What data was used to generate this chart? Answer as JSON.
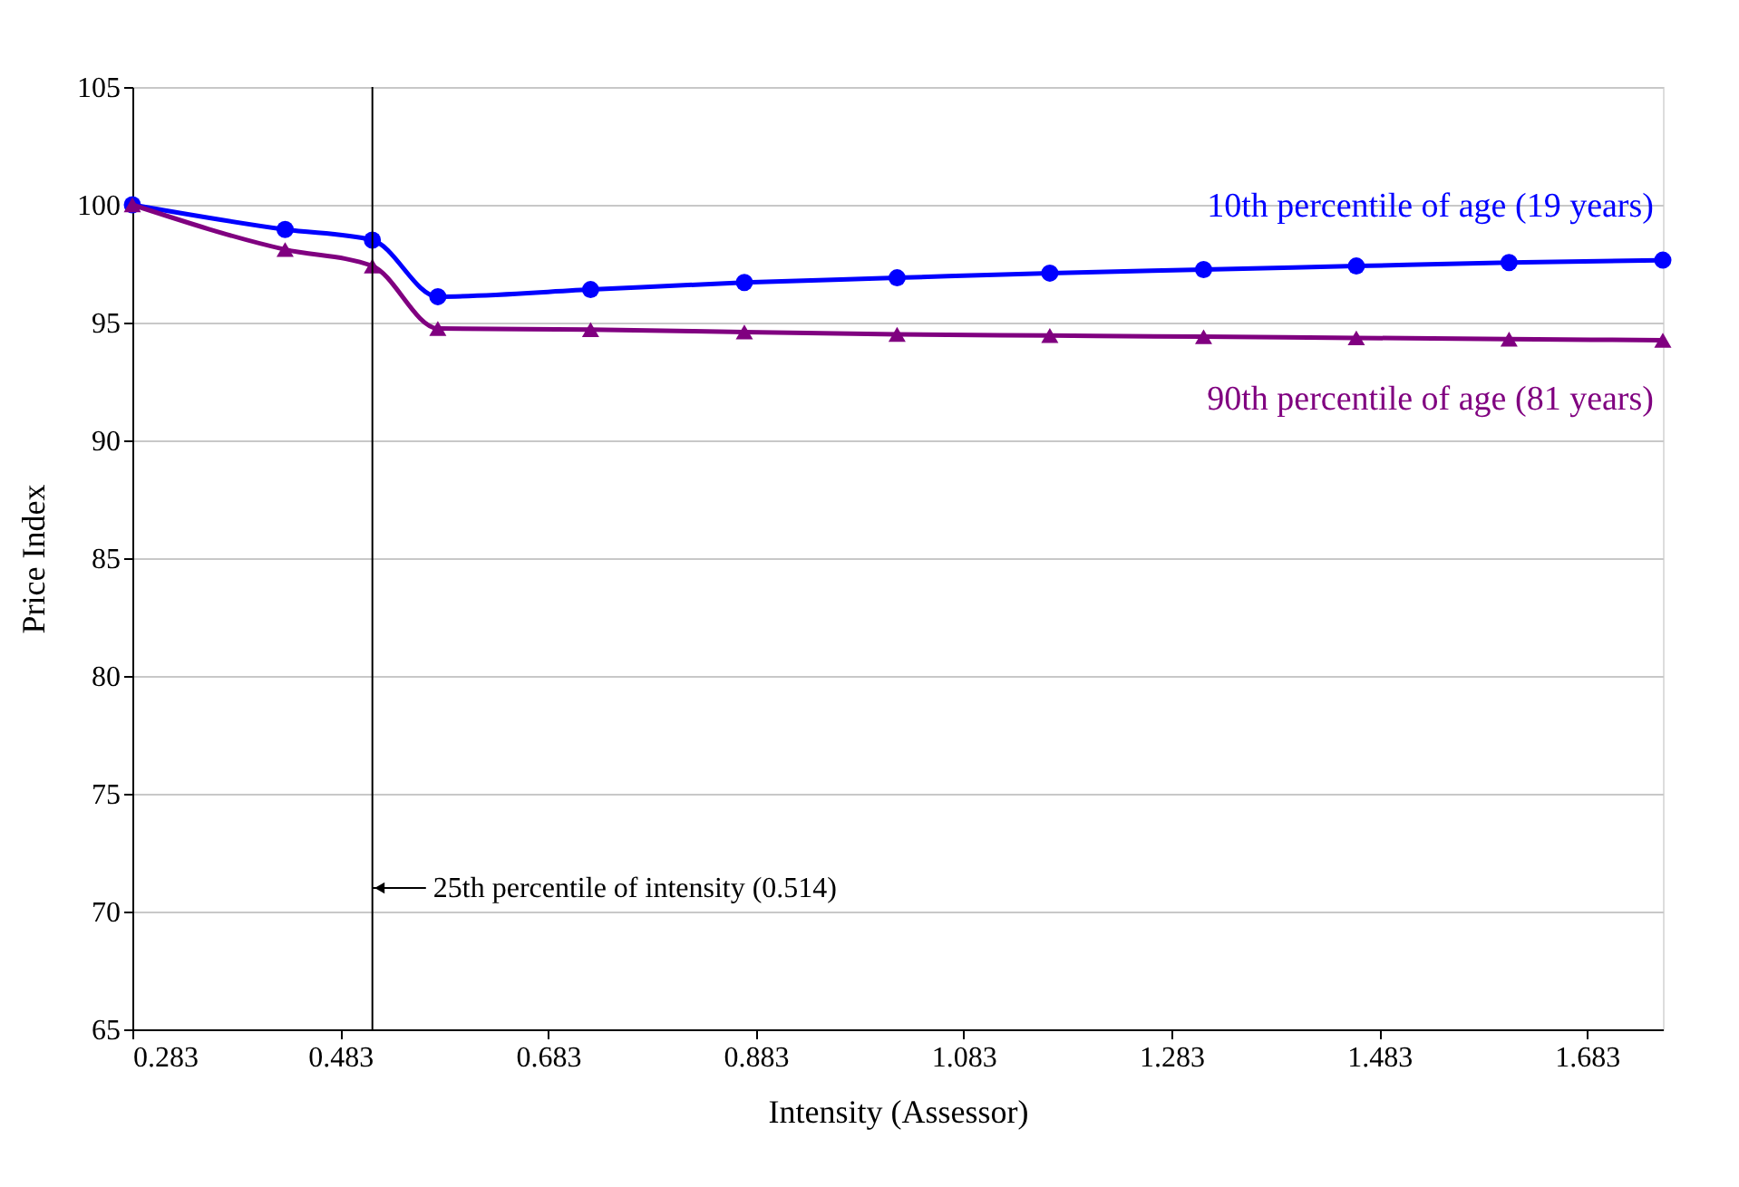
{
  "chart_data": {
    "type": "line",
    "xlabel": "Intensity (Assessor)",
    "ylabel": "Price Index",
    "x": [
      0.283,
      0.43,
      0.514,
      0.577,
      0.724,
      0.872,
      1.019,
      1.166,
      1.314,
      1.461,
      1.608,
      1.756
    ],
    "series": [
      {
        "name": "10th percentile of age (19 years)",
        "color": "#0000ff",
        "marker": "circle",
        "values": [
          100,
          98.95,
          98.5,
          96.1,
          96.4,
          96.7,
          96.9,
          97.1,
          97.25,
          97.4,
          97.55,
          97.65
        ]
      },
      {
        "name": "90th percentile of age (81 years)",
        "color": "#800080",
        "marker": "triangle",
        "values": [
          100,
          98.1,
          97.4,
          94.75,
          94.7,
          94.6,
          94.5,
          94.45,
          94.4,
          94.35,
          94.3,
          94.25
        ]
      }
    ],
    "xlim": [
      0.283,
      1.756
    ],
    "xticks": [
      0.283,
      0.483,
      0.683,
      0.883,
      1.083,
      1.283,
      1.483,
      1.683
    ],
    "ylim": [
      65,
      105
    ],
    "yticks": [
      65,
      70,
      75,
      80,
      85,
      90,
      95,
      100,
      105
    ],
    "grid": "y",
    "legend": false,
    "ref_lines": [
      {
        "axis": "x",
        "value": 0.514,
        "label": "25th percentile of intensity (0.514)",
        "color": "#000000"
      }
    ]
  }
}
